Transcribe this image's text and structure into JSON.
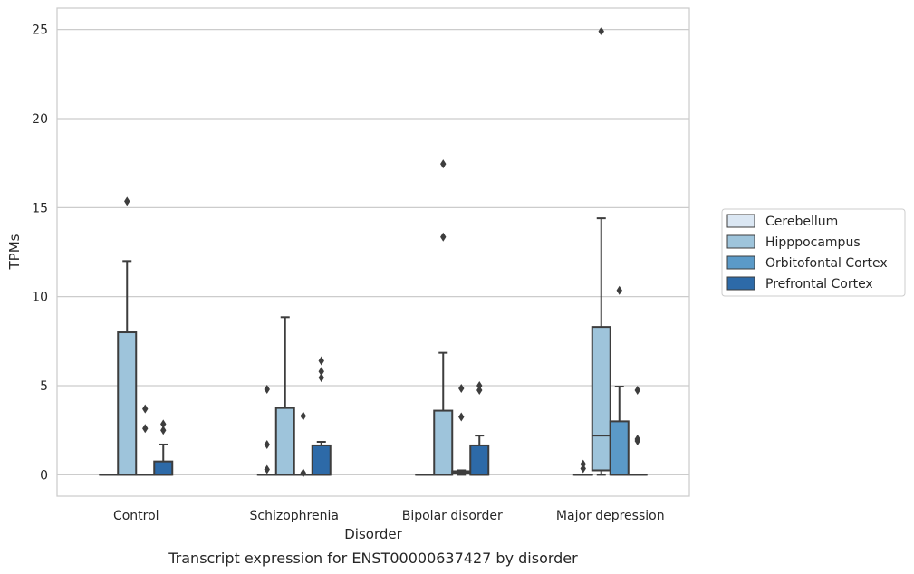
{
  "chart_data": {
    "type": "box",
    "caption": "Transcript expression for ENST00000637427 by disorder",
    "xlabel": "Disorder",
    "ylabel": "TPMs",
    "ylim": [
      -1.2,
      26.2
    ],
    "yticks": [
      0,
      5,
      10,
      15,
      20,
      25
    ],
    "grid": true,
    "legend_position": "right",
    "categories": [
      "Control",
      "Schizophrenia",
      "Bipolar disorder",
      "Major depression"
    ],
    "series": [
      {
        "name": "Cerebellum",
        "color": "#dbe7f3",
        "boxes": [
          {
            "low": 0,
            "q1": 0,
            "median": 0,
            "q3": 0,
            "high": 0,
            "outliers": []
          },
          {
            "low": 0,
            "q1": 0,
            "median": 0,
            "q3": 0,
            "high": 0,
            "outliers": [
              0.3,
              1.7,
              4.8
            ]
          },
          {
            "low": 0,
            "q1": 0,
            "median": 0,
            "q3": 0,
            "high": 0,
            "outliers": []
          },
          {
            "low": 0,
            "q1": 0,
            "median": 0,
            "q3": 0,
            "high": 0,
            "outliers": [
              0.35,
              0.6
            ]
          }
        ]
      },
      {
        "name": "Hipppocampus",
        "color": "#9ec4db",
        "boxes": [
          {
            "low": 0,
            "q1": 0,
            "median": 0,
            "q3": 8.0,
            "high": 12.0,
            "outliers": [
              15.35
            ]
          },
          {
            "low": 0,
            "q1": 0,
            "median": 0,
            "q3": 3.75,
            "high": 8.85,
            "outliers": []
          },
          {
            "low": 0,
            "q1": 0,
            "median": 0,
            "q3": 3.6,
            "high": 6.85,
            "outliers": [
              13.35,
              17.45
            ]
          },
          {
            "low": 0,
            "q1": 0.25,
            "median": 2.2,
            "q3": 8.3,
            "high": 14.4,
            "outliers": [
              24.9
            ]
          }
        ]
      },
      {
        "name": "Orbitofontal Cortex",
        "color": "#5b9ac8",
        "boxes": [
          {
            "low": 0,
            "q1": 0,
            "median": 0,
            "q3": 0,
            "high": 0,
            "outliers": [
              2.6,
              3.7
            ]
          },
          {
            "low": 0,
            "q1": 0,
            "median": 0,
            "q3": 0,
            "high": 0,
            "outliers": [
              0.1,
              3.3
            ]
          },
          {
            "low": 0,
            "q1": 0.1,
            "median": 0.15,
            "q3": 0.2,
            "high": 0.25,
            "outliers": [
              3.25,
              4.85
            ]
          },
          {
            "low": 0,
            "q1": 0,
            "median": 0,
            "q3": 3.0,
            "high": 4.95,
            "outliers": [
              10.35
            ]
          }
        ]
      },
      {
        "name": "Prefrontal Cortex",
        "color": "#2d6aa8",
        "boxes": [
          {
            "low": 0,
            "q1": 0,
            "median": 0,
            "q3": 0.75,
            "high": 1.7,
            "outliers": [
              2.5,
              2.85
            ]
          },
          {
            "low": 0,
            "q1": 0,
            "median": 0,
            "q3": 1.65,
            "high": 1.85,
            "outliers": [
              5.45,
              5.8,
              6.4
            ]
          },
          {
            "low": 0,
            "q1": 0,
            "median": 0,
            "q3": 1.65,
            "high": 2.2,
            "outliers": [
              4.75,
              5.0
            ]
          },
          {
            "low": 0,
            "q1": 0,
            "median": 0,
            "q3": 0,
            "high": 0,
            "outliers": [
              1.9,
              2.0,
              4.75
            ]
          }
        ]
      }
    ]
  }
}
